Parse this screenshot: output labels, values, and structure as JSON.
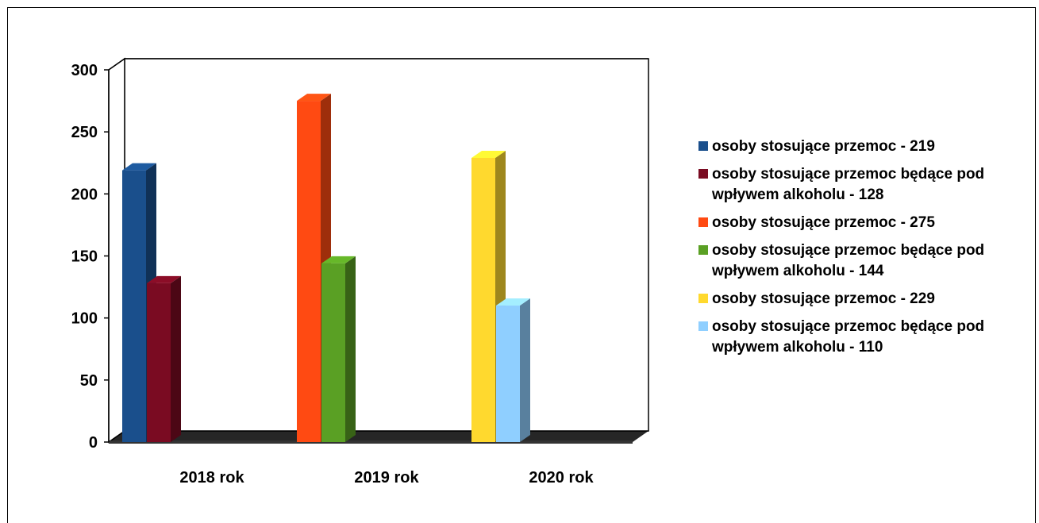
{
  "chart_data": {
    "type": "bar",
    "categories": [
      "2018 rok",
      "2019 rok",
      "2020 rok"
    ],
    "series": [
      {
        "category": "2018 rok",
        "value": 219,
        "color": "#1a4f8c",
        "legend": "osoby stosujące przemoc - 219"
      },
      {
        "category": "2018 rok",
        "value": 128,
        "color": "#7a0b22",
        "legend": "osoby stosujące przemoc będące pod wpływem alkoholu - 128"
      },
      {
        "category": "2019 rok",
        "value": 275,
        "color": "#ff4a12",
        "legend": "osoby stosujące przemoc - 275"
      },
      {
        "category": "2019 rok",
        "value": 144,
        "color": "#5aa024",
        "legend": "osoby stosujące przemoc będące pod wpływem alkoholu - 144"
      },
      {
        "category": "2020 rok",
        "value": 229,
        "color": "#ffd92e",
        "legend": "osoby stosujące przemoc - 229"
      },
      {
        "category": "2020 rok",
        "value": 110,
        "color": "#8fcfff",
        "legend": "osoby stosujące przemoc będące pod wpływem alkoholu - 110"
      }
    ],
    "y_ticks": [
      "0",
      "50",
      "100",
      "150",
      "200",
      "250",
      "300"
    ],
    "ylim": [
      0,
      300
    ],
    "grid": true,
    "legend_position": "right",
    "title": "",
    "xlabel": "",
    "ylabel": ""
  }
}
